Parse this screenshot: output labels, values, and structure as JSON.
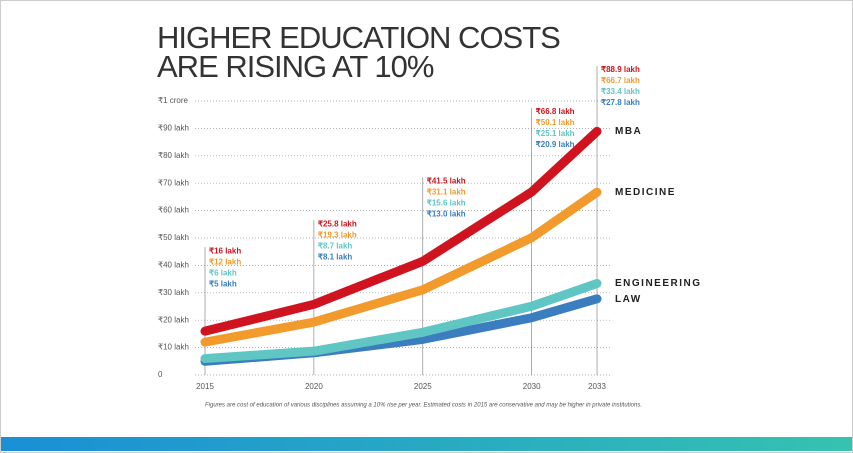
{
  "chart_data": {
    "type": "line",
    "title": [
      "HIGHER EDUCATION COSTS",
      "ARE RISING AT 10%"
    ],
    "x": [
      2015,
      2020,
      2025,
      2030,
      2033
    ],
    "xlim": [
      2015,
      2033
    ],
    "xticks": [
      2015,
      2020,
      2025,
      2030,
      2033
    ],
    "ylim": [
      0,
      100
    ],
    "yticks": [
      0,
      {
        "value": 10,
        "label": "₹10 lakh"
      },
      {
        "value": 20,
        "label": "₹20 lakh"
      },
      {
        "value": 30,
        "label": "₹30 lakh"
      },
      {
        "value": 40,
        "label": "₹40 lakh"
      },
      {
        "value": 50,
        "label": "₹50 lakh"
      },
      {
        "value": 60,
        "label": "₹60 lakh"
      },
      {
        "value": 70,
        "label": "₹70 lakh"
      },
      {
        "value": 80,
        "label": "₹80 lakh"
      },
      {
        "value": 90,
        "label": "₹90 lakh"
      },
      {
        "value": 100,
        "label": "₹1 crore"
      }
    ],
    "grid": true,
    "series": [
      {
        "name": "MBA",
        "color": "#d0141f",
        "values": [
          16,
          25.8,
          41.5,
          66.8,
          88.9
        ],
        "value_labels": [
          "₹16 lakh",
          "₹25.8 lakh",
          "₹41.5 lakh",
          "₹66.8 lakh",
          "₹88.9 lakh"
        ]
      },
      {
        "name": "MEDICINE",
        "color": "#f39a2c",
        "values": [
          12,
          19.3,
          31.1,
          50.1,
          66.7
        ],
        "value_labels": [
          "₹12 lakh",
          "₹19.3 lakh",
          "₹31.1 lakh",
          "₹50.1 lakh",
          "₹66.7 lakh"
        ]
      },
      {
        "name": "ENGINEERING",
        "color": "#5fc6c3",
        "values": [
          6,
          8.7,
          15.6,
          25.1,
          33.4
        ],
        "value_labels": [
          "₹6 lakh",
          "₹8.7 lakh",
          "₹15.6 lakh",
          "₹25.1 lakh",
          "₹33.4 lakh"
        ]
      },
      {
        "name": "LAW",
        "color": "#3a7ebf",
        "values": [
          5,
          8.1,
          13.0,
          20.9,
          27.8
        ],
        "value_labels": [
          "₹5 lakh",
          "₹8.1 lakh",
          "₹13.0 lakh",
          "₹20.9 lakh",
          "₹27.8 lakh"
        ]
      }
    ],
    "note": "Figures are cost of education of various disciplines assuming a 10% rise per year. Estimated costs in 2015 are conservative and may be higher in private institutions."
  }
}
